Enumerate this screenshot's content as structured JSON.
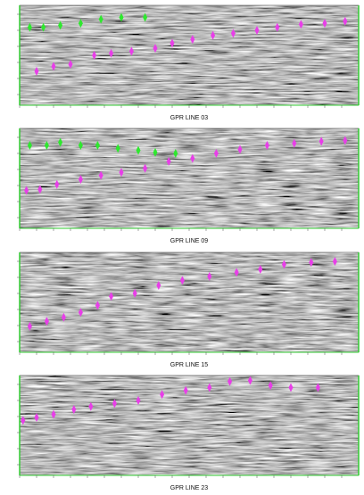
{
  "figure": {
    "panels": [
      {
        "caption": "GPR LINE 03"
      },
      {
        "caption": "GPR LINE 09"
      },
      {
        "caption": "GPR LINE 15"
      },
      {
        "caption": "GPR LINE 23"
      }
    ]
  }
}
